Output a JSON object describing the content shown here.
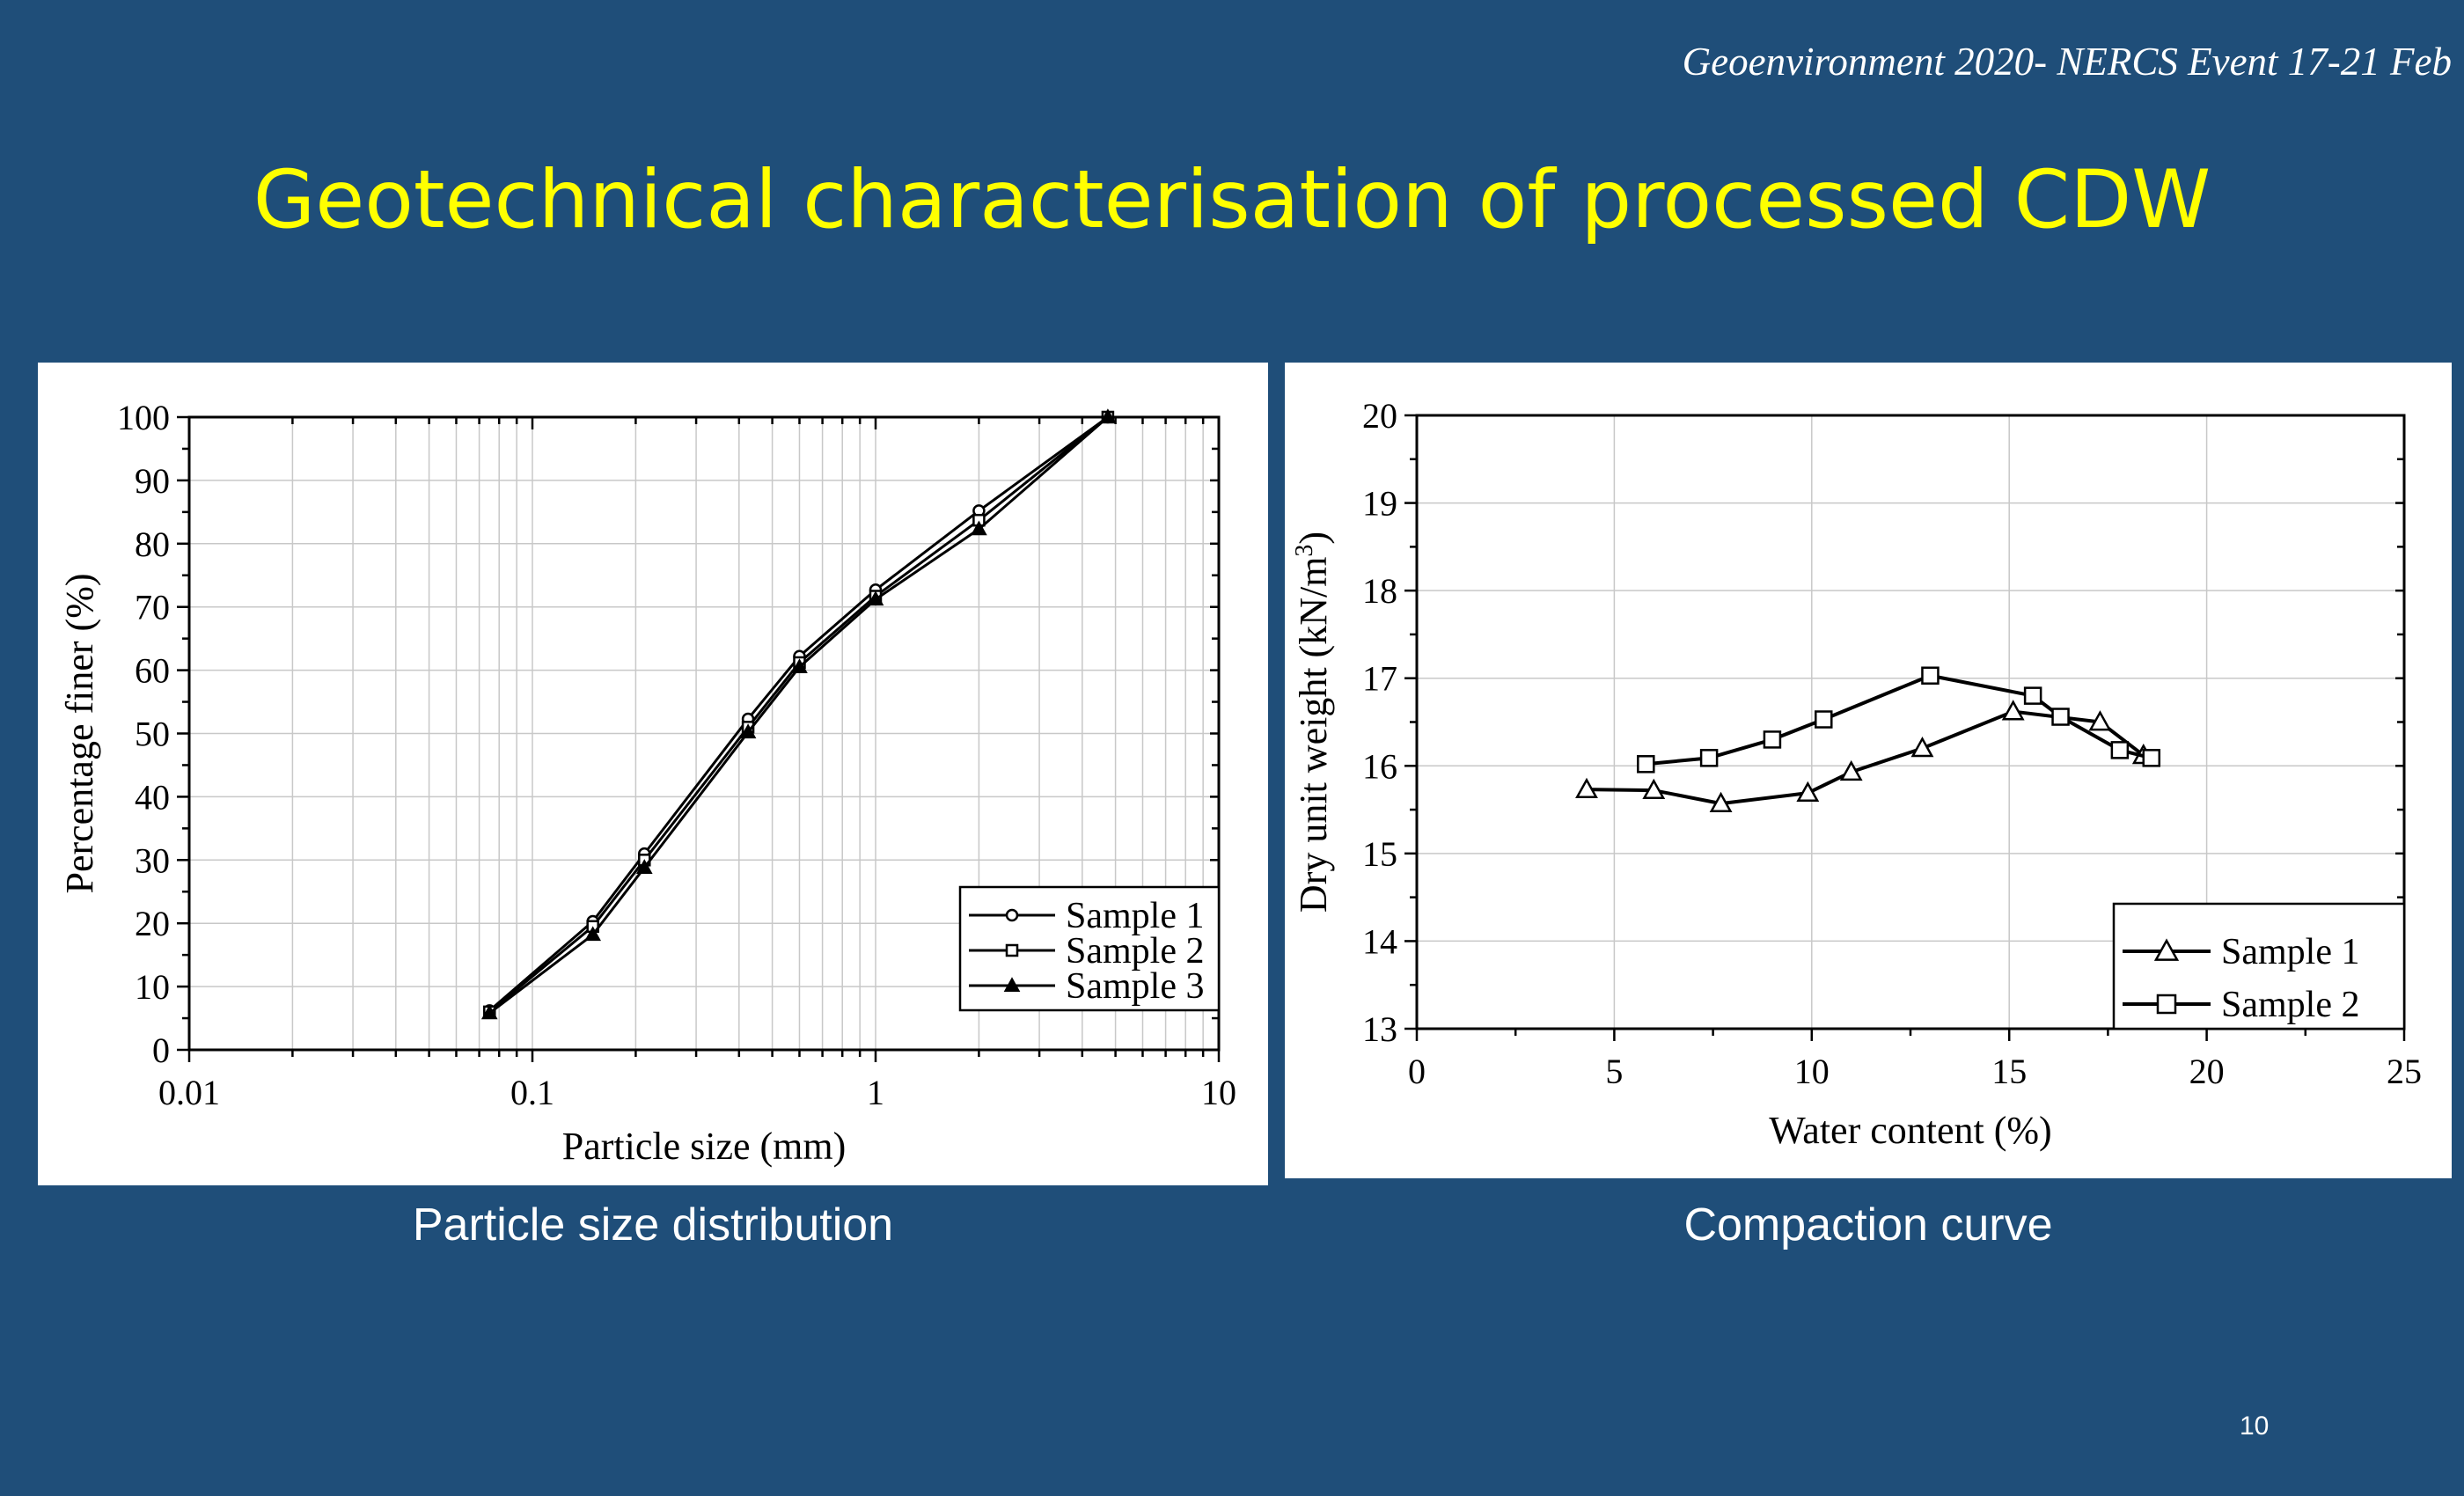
{
  "slide": {
    "header": "Geoenvironment 2020- NERCS Event 17-21 Feb",
    "title": "Geotechnical characterisation of processed CDW",
    "page_number": "10",
    "title_color": "#ffff00",
    "background_color": "#1f4e79"
  },
  "captions": {
    "left": "Particle size distribution",
    "right": "Compaction curve"
  },
  "chart_data": [
    {
      "type": "line",
      "title": "",
      "xlabel": "Particle size (mm)",
      "ylabel": "Percentage finer (%)",
      "xscale": "log",
      "xlim": [
        0.01,
        10
      ],
      "ylim": [
        0,
        100
      ],
      "xticks": [
        0.01,
        0.1,
        1,
        10
      ],
      "xtick_labels": [
        "0.01",
        "0.1",
        "1",
        "10"
      ],
      "yticks": [
        0,
        10,
        20,
        30,
        40,
        50,
        60,
        70,
        80,
        90,
        100
      ],
      "grid": true,
      "legend_position": "bottom-right",
      "series": [
        {
          "name": "Sample 1",
          "marker": "circle-open",
          "x": [
            0.075,
            0.15,
            0.212,
            0.425,
            0.6,
            1.0,
            2.0,
            4.75
          ],
          "y": [
            6.2,
            20.3,
            31.0,
            52.3,
            62.2,
            72.7,
            85.2,
            100
          ]
        },
        {
          "name": "Sample 2",
          "marker": "square-open",
          "x": [
            0.075,
            0.15,
            0.212,
            0.425,
            0.6,
            1.0,
            2.0,
            4.75
          ],
          "y": [
            6.0,
            19.5,
            30.0,
            51.0,
            61.2,
            71.7,
            83.7,
            100
          ]
        },
        {
          "name": "Sample 3",
          "marker": "triangle-filled",
          "x": [
            0.075,
            0.15,
            0.212,
            0.425,
            0.6,
            1.0,
            2.0,
            4.75
          ],
          "y": [
            5.8,
            18.2,
            28.8,
            50.2,
            60.5,
            71.2,
            82.3,
            100
          ]
        }
      ]
    },
    {
      "type": "line",
      "title": "",
      "xlabel": "Water content (%)",
      "ylabel": "Dry unit weight (kN/m",
      "ylabel_superscript": "3",
      "ylabel_suffix": ")",
      "xlim": [
        0,
        25
      ],
      "ylim": [
        13,
        20
      ],
      "xticks": [
        0,
        5,
        10,
        15,
        20,
        25
      ],
      "yticks": [
        13,
        14,
        15,
        16,
        17,
        18,
        19,
        20
      ],
      "grid": true,
      "legend_position": "bottom-right",
      "series": [
        {
          "name": "Sample 1",
          "marker": "triangle-open",
          "x": [
            4.3,
            6.0,
            7.7,
            9.9,
            11.0,
            12.8,
            15.1,
            17.3,
            18.4
          ],
          "y": [
            15.73,
            15.72,
            15.57,
            15.69,
            15.93,
            16.2,
            16.62,
            16.5,
            16.12
          ]
        },
        {
          "name": "Sample 2",
          "marker": "square-open",
          "x": [
            5.8,
            7.4,
            9.0,
            10.3,
            13.0,
            15.6,
            16.3,
            17.8,
            18.6
          ],
          "y": [
            16.02,
            16.09,
            16.3,
            16.53,
            17.03,
            16.8,
            16.56,
            16.18,
            16.09
          ]
        }
      ]
    }
  ]
}
